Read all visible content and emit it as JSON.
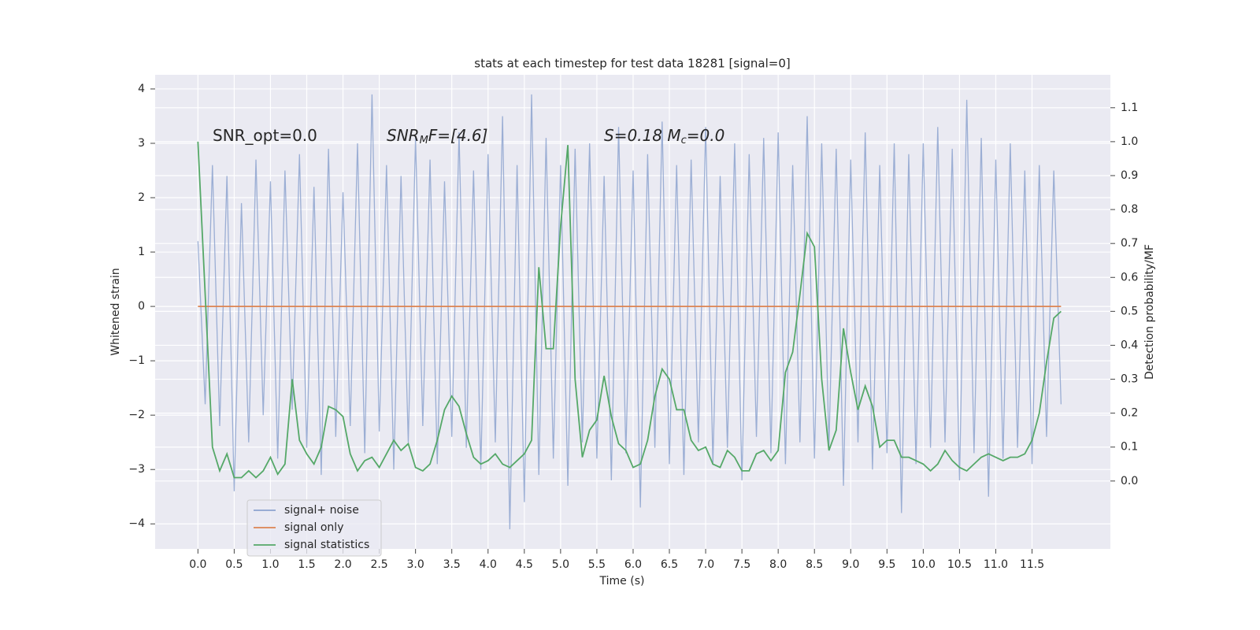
{
  "chart_data": {
    "type": "line",
    "title": "stats at each timestep for test data 18281 [signal=0]",
    "x_label": "Time (s)",
    "y_label": "Whitened strain",
    "y2_label": "Detection probability/MF",
    "annotations": [
      [
        "SNR_opt=0.0"
      ],
      [
        "SNR",
        "M",
        "F=[4.6]"
      ],
      [
        "S=0.18   M",
        "c",
        "=0.0"
      ]
    ],
    "legend": "lower left",
    "grid": true,
    "x": [
      0,
      0.1,
      0.2,
      0.3,
      0.4,
      0.5,
      0.6,
      0.7,
      0.8,
      0.9,
      1,
      1.1,
      1.2,
      1.3,
      1.4,
      1.5,
      1.6,
      1.7,
      1.8,
      1.9,
      2,
      2.1,
      2.2,
      2.3,
      2.4,
      2.5,
      2.6,
      2.7,
      2.8,
      2.9,
      3,
      3.1,
      3.2,
      3.3,
      3.4,
      3.5,
      3.6,
      3.7,
      3.8,
      3.9,
      4,
      4.1,
      4.2,
      4.3,
      4.4,
      4.5,
      4.6,
      4.7,
      4.8,
      4.9,
      5,
      5.1,
      5.2,
      5.3,
      5.4,
      5.5,
      5.6,
      5.7,
      5.8,
      5.9,
      6,
      6.1,
      6.2,
      6.3,
      6.4,
      6.5,
      6.6,
      6.7,
      6.8,
      6.9,
      7,
      7.1,
      7.2,
      7.3,
      7.4,
      7.5,
      7.6,
      7.7,
      7.8,
      7.9,
      8,
      8.1,
      8.2,
      8.3,
      8.4,
      8.5,
      8.6,
      8.7,
      8.8,
      8.9,
      9,
      9.1,
      9.2,
      9.3,
      9.4,
      9.5,
      9.6,
      9.7,
      9.8,
      9.9,
      10,
      10.1,
      10.2,
      10.3,
      10.4,
      10.5,
      10.6,
      10.7,
      10.8,
      10.9,
      11,
      11.1,
      11.2,
      11.3,
      11.4,
      11.5,
      11.6,
      11.7,
      11.8,
      11.9
    ],
    "series": [
      {
        "name": "signal+ noise",
        "color": "#8da3cf",
        "axis": "y",
        "values": [
          1.2,
          -1.8,
          2.6,
          -2.2,
          2.4,
          -3.4,
          1.9,
          -2.5,
          2.7,
          -2.0,
          2.3,
          -2.8,
          2.5,
          -1.9,
          2.8,
          -2.6,
          2.2,
          -3.1,
          2.9,
          -2.4,
          2.1,
          -2.2,
          3.0,
          -2.7,
          3.9,
          -2.3,
          2.6,
          -3.0,
          2.4,
          -2.5,
          3.1,
          -2.2,
          2.7,
          -2.9,
          2.3,
          -2.4,
          3.2,
          -2.6,
          2.5,
          -3.0,
          2.8,
          -2.5,
          3.5,
          -4.1,
          2.6,
          -3.6,
          3.9,
          -3.1,
          3.1,
          -2.8,
          2.6,
          -3.3,
          2.9,
          -2.5,
          3.0,
          -2.8,
          2.4,
          -3.2,
          3.3,
          -2.7,
          2.5,
          -3.7,
          2.8,
          -2.6,
          3.4,
          -2.9,
          2.6,
          -3.1,
          2.7,
          -2.5,
          3.3,
          -2.9,
          2.4,
          -2.6,
          3.0,
          -3.2,
          2.8,
          -2.4,
          3.1,
          -2.7,
          3.2,
          -2.9,
          2.6,
          -2.5,
          3.5,
          -2.8,
          3.0,
          -2.6,
          2.9,
          -3.3,
          2.7,
          -2.5,
          3.2,
          -3.0,
          2.6,
          -2.7,
          3.0,
          -3.8,
          2.8,
          -2.9,
          3.0,
          -2.6,
          3.3,
          -2.5,
          2.9,
          -3.2,
          3.8,
          -2.7,
          3.1,
          -3.5,
          2.7,
          -2.8,
          3.0,
          -2.6,
          2.5,
          -2.9,
          2.6,
          -2.4,
          2.5,
          -1.8
        ]
      },
      {
        "name": "signal only",
        "color": "#dd8452",
        "axis": "y",
        "values": [
          0,
          0,
          0,
          0,
          0,
          0,
          0,
          0,
          0,
          0,
          0,
          0,
          0,
          0,
          0,
          0,
          0,
          0,
          0,
          0,
          0,
          0,
          0,
          0,
          0,
          0,
          0,
          0,
          0,
          0,
          0,
          0,
          0,
          0,
          0,
          0,
          0,
          0,
          0,
          0,
          0,
          0,
          0,
          0,
          0,
          0,
          0,
          0,
          0,
          0,
          0,
          0,
          0,
          0,
          0,
          0,
          0,
          0,
          0,
          0,
          0,
          0,
          0,
          0,
          0,
          0,
          0,
          0,
          0,
          0,
          0,
          0,
          0,
          0,
          0,
          0,
          0,
          0,
          0,
          0,
          0,
          0,
          0,
          0,
          0,
          0,
          0,
          0,
          0,
          0,
          0,
          0,
          0,
          0,
          0,
          0,
          0,
          0,
          0,
          0,
          0,
          0,
          0,
          0,
          0,
          0,
          0,
          0,
          0,
          0,
          0,
          0,
          0,
          0,
          0,
          0,
          0,
          0,
          0,
          0
        ]
      },
      {
        "name": "signal statistics",
        "color": "#55a868",
        "axis": "y2",
        "values": [
          1.0,
          0.55,
          0.1,
          0.03,
          0.08,
          0.01,
          0.01,
          0.03,
          0.01,
          0.03,
          0.07,
          0.02,
          0.05,
          0.3,
          0.12,
          0.08,
          0.05,
          0.1,
          0.22,
          0.21,
          0.19,
          0.08,
          0.03,
          0.06,
          0.07,
          0.04,
          0.08,
          0.12,
          0.09,
          0.11,
          0.04,
          0.03,
          0.05,
          0.12,
          0.21,
          0.25,
          0.22,
          0.14,
          0.07,
          0.05,
          0.06,
          0.08,
          0.05,
          0.04,
          0.06,
          0.08,
          0.12,
          0.63,
          0.39,
          0.39,
          0.75,
          0.99,
          0.3,
          0.07,
          0.15,
          0.18,
          0.31,
          0.19,
          0.11,
          0.09,
          0.04,
          0.05,
          0.12,
          0.25,
          0.33,
          0.3,
          0.21,
          0.21,
          0.12,
          0.09,
          0.1,
          0.05,
          0.04,
          0.09,
          0.07,
          0.03,
          0.03,
          0.08,
          0.09,
          0.06,
          0.09,
          0.32,
          0.38,
          0.55,
          0.73,
          0.69,
          0.3,
          0.09,
          0.15,
          0.45,
          0.32,
          0.21,
          0.28,
          0.22,
          0.1,
          0.12,
          0.12,
          0.07,
          0.07,
          0.06,
          0.05,
          0.03,
          0.05,
          0.09,
          0.06,
          0.04,
          0.03,
          0.05,
          0.07,
          0.08,
          0.07,
          0.06,
          0.07,
          0.07,
          0.08,
          0.12,
          0.2,
          0.35,
          0.48,
          0.5
        ]
      }
    ],
    "xlim": [
      -0.59,
      12.58
    ],
    "xticks": [
      {
        "value": 0,
        "label": "0.0"
      },
      0.5,
      {
        "value": 1,
        "label": "1.0"
      },
      1.5,
      {
        "value": 2,
        "label": "2.0"
      },
      2.5,
      {
        "value": 3,
        "label": "3.0"
      },
      3.5,
      {
        "value": 4,
        "label": "4.0"
      },
      4.5,
      {
        "value": 5,
        "label": "5.0"
      },
      5.5,
      {
        "value": 6,
        "label": "6.0"
      },
      6.5,
      {
        "value": 7,
        "label": "7.0"
      },
      7.5,
      {
        "value": 8,
        "label": "8.0"
      },
      8.5,
      {
        "value": 9,
        "label": "9.0"
      },
      9.5,
      {
        "value": 10,
        "label": "10.0"
      },
      10.5,
      {
        "value": 11,
        "label": "11.0"
      },
      11.5
    ],
    "ylim": [
      -4.46,
      4.26
    ],
    "yticks": [
      {
        "value": -4,
        "label": "−4"
      },
      {
        "value": -3,
        "label": "−3"
      },
      {
        "value": -2,
        "label": "−2"
      },
      {
        "value": -1,
        "label": "−1"
      },
      0,
      1,
      2,
      3,
      4
    ],
    "y2lim": [
      -0.2,
      1.197
    ],
    "y2ticks": [
      {
        "value": 0,
        "label": "0.0"
      },
      0.1,
      0.2,
      0.3,
      0.4,
      0.5,
      0.6,
      0.7,
      0.8,
      0.9,
      {
        "value": 1,
        "label": "1.0"
      },
      1.1
    ]
  }
}
